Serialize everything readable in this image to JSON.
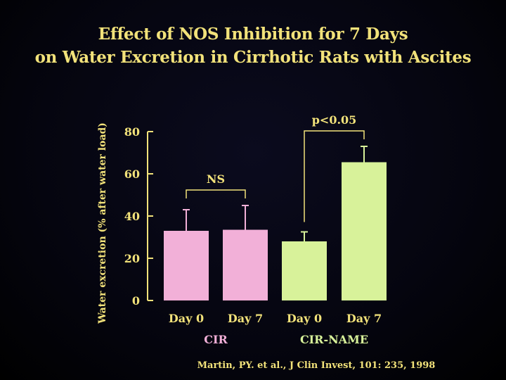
{
  "title": {
    "line1": "Effect of NOS Inhibition for 7 Days",
    "line2": "on Water Excretion in Cirrhotic Rats with Ascites"
  },
  "citation": "Martin, PY. et al., J Clin Invest, 101: 235, 1998",
  "colors": {
    "background": "#000000",
    "text": "#f2e27a",
    "cir": "#f2b0d8",
    "cir_name": "#d8f29a",
    "axis": "#f2e27a"
  },
  "chart_data": {
    "type": "bar",
    "ylabel": "Water excretion (% after water load)",
    "ylim": [
      0,
      80
    ],
    "yticks": [
      0,
      20,
      40,
      60,
      80
    ],
    "grid": false,
    "categories": [
      "Day 0",
      "Day 7",
      "Day 0",
      "Day 7"
    ],
    "groups": [
      {
        "name": "CIR",
        "bars": [
          0,
          1
        ],
        "color": "#f2b0d8"
      },
      {
        "name": "CIR-NAME",
        "bars": [
          2,
          3
        ],
        "color": "#d8f29a"
      }
    ],
    "values": [
      33,
      33.5,
      28,
      65.5
    ],
    "errors": [
      10,
      11.5,
      4.5,
      7.5
    ],
    "annotations": [
      {
        "text": "NS",
        "bars": [
          0,
          1
        ]
      },
      {
        "text": "p<0.05",
        "bars": [
          2,
          3
        ]
      }
    ]
  }
}
